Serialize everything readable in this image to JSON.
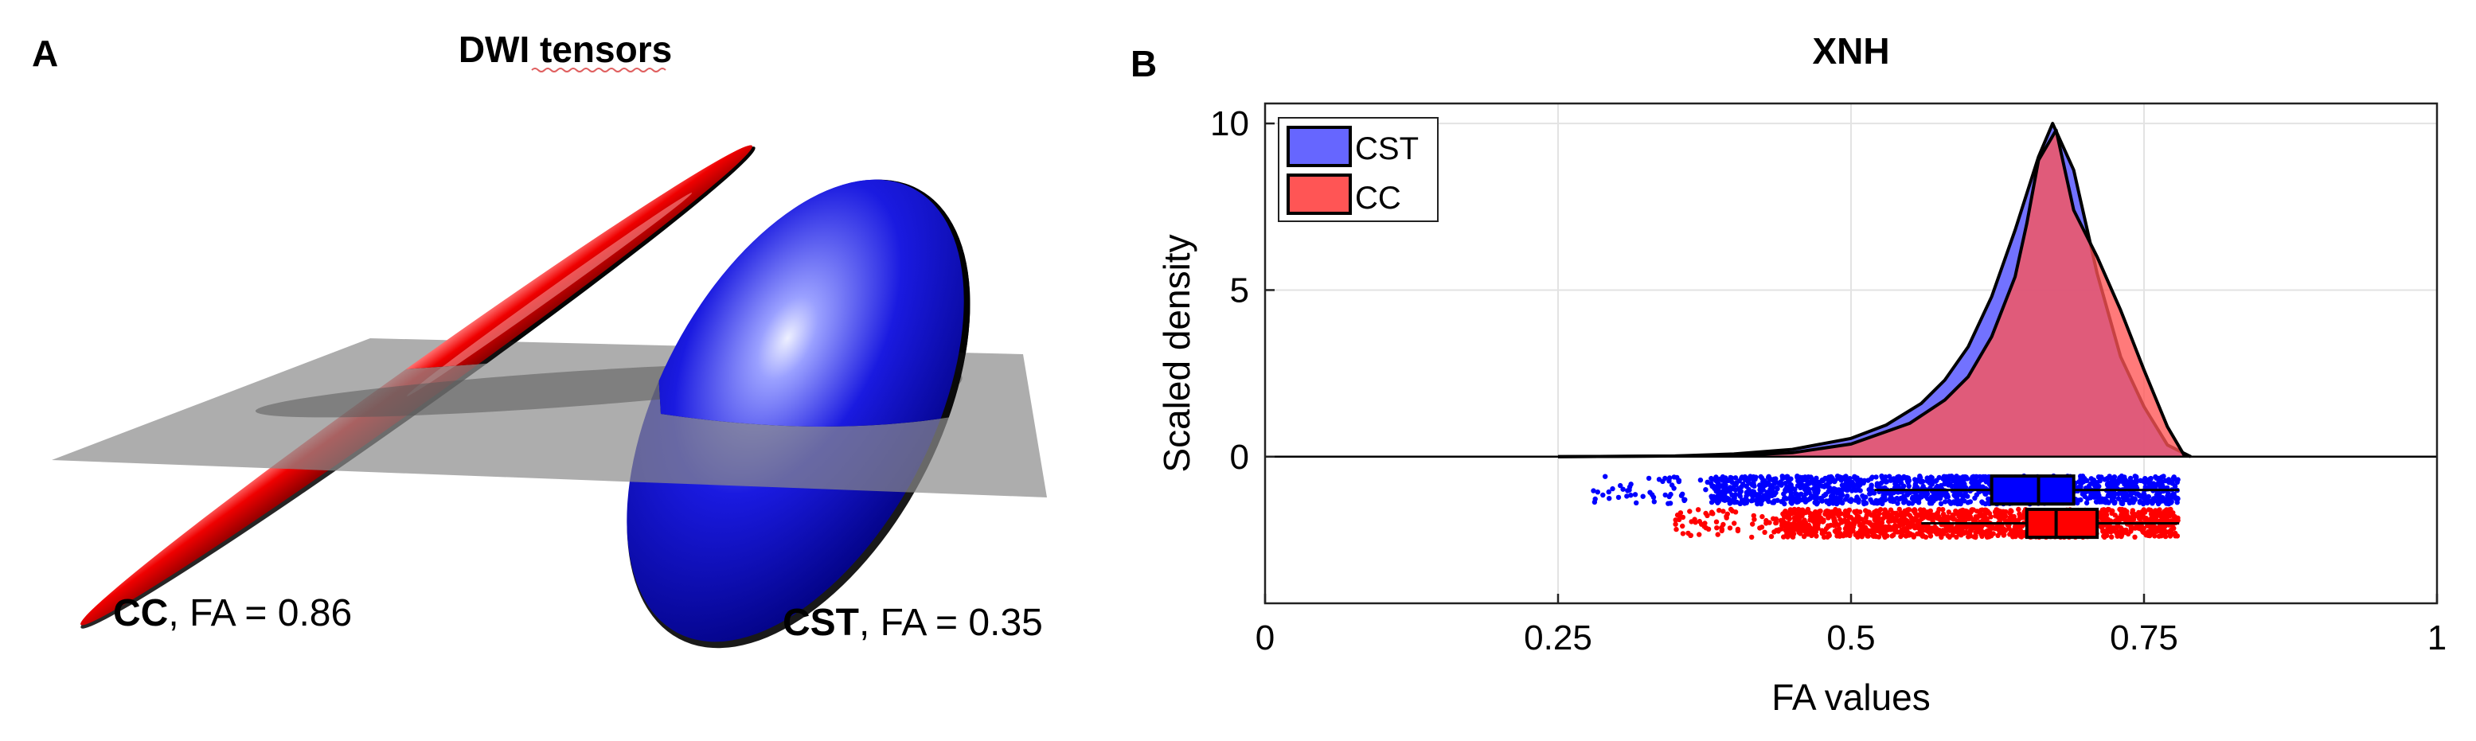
{
  "panel_a": {
    "letter": "A",
    "title": "DWI tensors",
    "cc_caption": {
      "bold": "CC",
      "rest": ", FA = 0.86"
    },
    "cst_caption": {
      "bold": "CST",
      "rest": ", FA = 0.35"
    },
    "colors": {
      "cc": "#e00000",
      "cst": "#0000d0",
      "plane": "#9a9a9a"
    }
  },
  "panel_b": {
    "letter": "B"
  },
  "chart_data": {
    "type": "area",
    "title": "XNH",
    "xlabel": "FA values",
    "ylabel": "Scaled density",
    "xlim": [
      0,
      1
    ],
    "ylim": [
      -4.4,
      10.6
    ],
    "xticks": [
      0,
      0.25,
      0.5,
      0.75,
      1
    ],
    "xtick_labels": [
      "0",
      "0.25",
      "0.5",
      "0.75",
      "1"
    ],
    "yticks": [
      0,
      5,
      10
    ],
    "ytick_labels": [
      "0",
      "5",
      "10"
    ],
    "grid": true,
    "legend_position": "top-left",
    "series": [
      {
        "name": "CST",
        "color": "#6666ff",
        "x": [
          0.25,
          0.35,
          0.4,
          0.45,
          0.5,
          0.53,
          0.56,
          0.58,
          0.6,
          0.62,
          0.64,
          0.66,
          0.672,
          0.69,
          0.71,
          0.73,
          0.75,
          0.77,
          0.79
        ],
        "density": [
          0,
          0.02,
          0.08,
          0.22,
          0.55,
          0.95,
          1.6,
          2.3,
          3.3,
          4.8,
          6.8,
          9.0,
          10.0,
          8.6,
          5.5,
          3.0,
          1.5,
          0.35,
          0
        ],
        "box": {
          "whisker_low": 0.52,
          "q1": 0.62,
          "median": 0.66,
          "q3": 0.69,
          "whisker_high": 0.78
        },
        "jitter_range": [
          0.28,
          0.78
        ],
        "dot_color": "#0000ff"
      },
      {
        "name": "CC",
        "color": "#ff5555",
        "x": [
          0.25,
          0.4,
          0.45,
          0.5,
          0.55,
          0.58,
          0.6,
          0.62,
          0.64,
          0.65,
          0.66,
          0.675,
          0.69,
          0.71,
          0.73,
          0.75,
          0.77,
          0.785
        ],
        "density": [
          0,
          0.03,
          0.12,
          0.38,
          1.0,
          1.7,
          2.4,
          3.6,
          5.4,
          7.0,
          8.9,
          9.8,
          7.4,
          6.0,
          4.4,
          2.6,
          0.9,
          0
        ],
        "box": {
          "whisker_low": 0.56,
          "q1": 0.65,
          "median": 0.675,
          "q3": 0.71,
          "whisker_high": 0.78
        },
        "jitter_range": [
          0.35,
          0.78
        ],
        "dot_color": "#ff0000"
      }
    ]
  }
}
